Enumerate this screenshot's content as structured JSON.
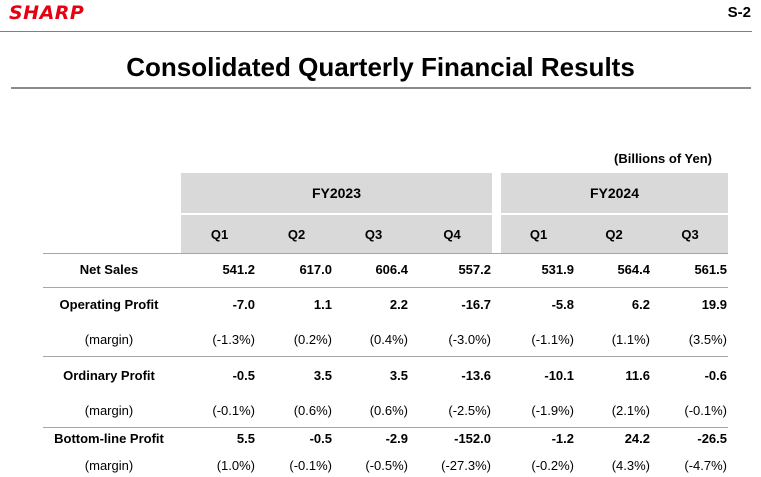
{
  "header": {
    "logo": "SHARP",
    "page": "S-2",
    "title": "Consolidated Quarterly Financial Results",
    "units": "(Billions of Yen)"
  },
  "groups": [
    {
      "label": "FY2023",
      "quarters": [
        "Q1",
        "Q2",
        "Q3",
        "Q4"
      ]
    },
    {
      "label": "FY2024",
      "quarters": [
        "Q1",
        "Q2",
        "Q3"
      ]
    }
  ],
  "rows": [
    {
      "label": "Net Sales",
      "bold": true,
      "values": [
        "541.2",
        "617.0",
        "606.4",
        "557.2",
        "531.9",
        "564.4",
        "561.5"
      ]
    },
    {
      "label": "Operating Profit",
      "bold": true,
      "values": [
        "-7.0",
        "1.1",
        "2.2",
        "-16.7",
        "-5.8",
        "6.2",
        "19.9"
      ]
    },
    {
      "label": "(margin)",
      "bold": false,
      "values": [
        "(-1.3%)",
        "(0.2%)",
        "(0.4%)",
        "(-3.0%)",
        "(-1.1%)",
        "(1.1%)",
        "(3.5%)"
      ]
    },
    {
      "label": "Ordinary Profit",
      "bold": true,
      "values": [
        "-0.5",
        "3.5",
        "3.5",
        "-13.6",
        "-10.1",
        "11.6",
        "-0.6"
      ]
    },
    {
      "label": "(margin)",
      "bold": false,
      "values": [
        "(-0.1%)",
        "(0.6%)",
        "(0.6%)",
        "(-2.5%)",
        "(-1.9%)",
        "(2.1%)",
        "(-0.1%)"
      ]
    },
    {
      "label": "Bottom-line Profit",
      "bold": true,
      "values": [
        "5.5",
        "-0.5",
        "-2.9",
        "-152.0",
        "-1.2",
        "24.2",
        "-26.5"
      ]
    },
    {
      "label": "(margin)",
      "bold": false,
      "values": [
        "(1.0%)",
        "(-0.1%)",
        "(-0.5%)",
        "(-27.3%)",
        "(-0.2%)",
        "(4.3%)",
        "(-4.7%)"
      ]
    }
  ],
  "colors": {
    "logo": "#e60012",
    "header_fill": "#d9d9d9",
    "rule": "#a6a6a6"
  }
}
